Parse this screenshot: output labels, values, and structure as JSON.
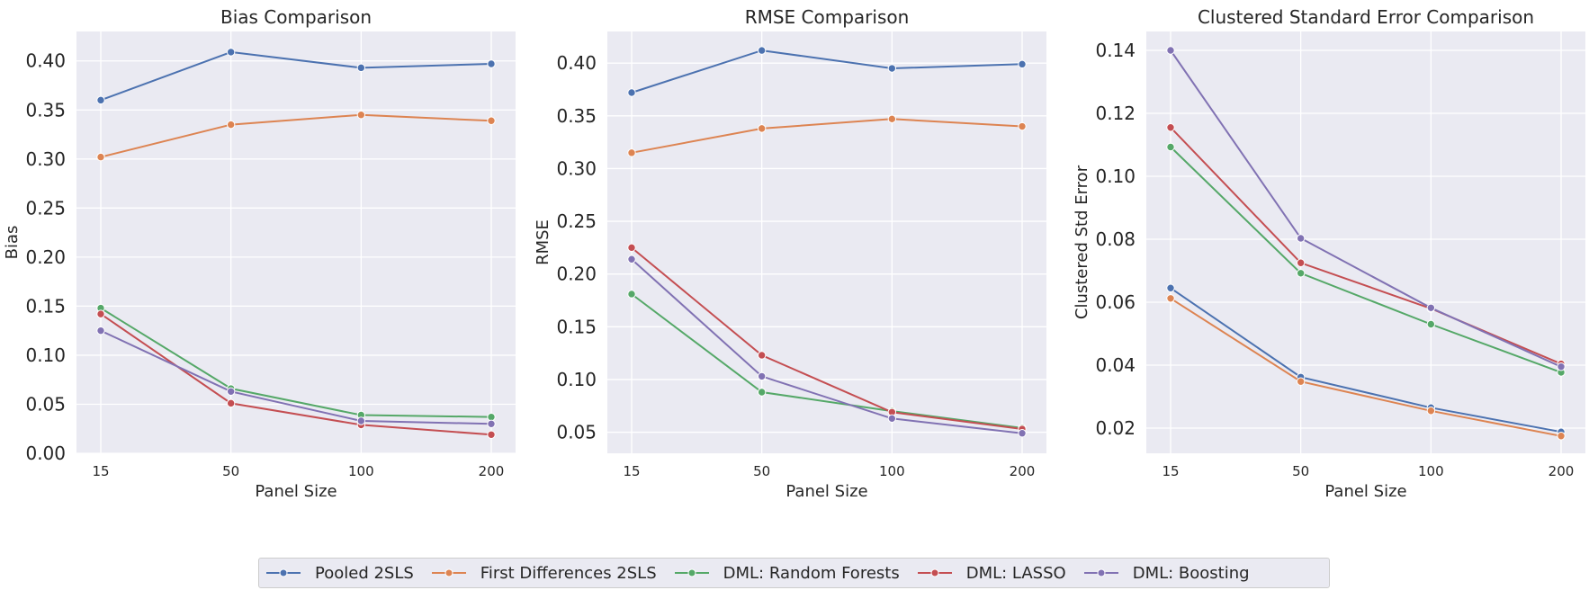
{
  "figure": {
    "title": "",
    "x_categories": [
      "15",
      "50",
      "100",
      "200"
    ]
  },
  "legend": {
    "items": [
      {
        "label": "Pooled 2SLS",
        "color": "#4c72b0"
      },
      {
        "label": "First Differences 2SLS",
        "color": "#dd8452"
      },
      {
        "label": "DML: Random Forests",
        "color": "#55a868"
      },
      {
        "label": "DML: LASSO",
        "color": "#c44e52"
      },
      {
        "label": "DML: Boosting",
        "color": "#8172b3"
      }
    ]
  },
  "chart_data": [
    {
      "type": "line",
      "title": "Bias Comparison",
      "xlabel": "Panel Size",
      "ylabel": "Bias",
      "categories": [
        "15",
        "50",
        "100",
        "200"
      ],
      "ylim": [
        0,
        0.43
      ],
      "yticks": [
        "0.00",
        "0.05",
        "0.10",
        "0.15",
        "0.20",
        "0.25",
        "0.30",
        "0.35",
        "0.40"
      ],
      "grid": true,
      "series": [
        {
          "name": "Pooled 2SLS",
          "color": "#4c72b0",
          "values": [
            0.36,
            0.409,
            0.393,
            0.397
          ]
        },
        {
          "name": "First Differences 2SLS",
          "color": "#dd8452",
          "values": [
            0.302,
            0.335,
            0.345,
            0.339
          ]
        },
        {
          "name": "DML: Random Forests",
          "color": "#55a868",
          "values": [
            0.148,
            0.066,
            0.039,
            0.037
          ]
        },
        {
          "name": "DML: LASSO",
          "color": "#c44e52",
          "values": [
            0.142,
            0.051,
            0.029,
            0.019
          ]
        },
        {
          "name": "DML: Boosting",
          "color": "#8172b3",
          "values": [
            0.125,
            0.063,
            0.033,
            0.03
          ]
        }
      ]
    },
    {
      "type": "line",
      "title": "RMSE Comparison",
      "xlabel": "Panel Size",
      "ylabel": "RMSE",
      "categories": [
        "15",
        "50",
        "100",
        "200"
      ],
      "ylim": [
        0.03,
        0.43
      ],
      "yticks": [
        "0.05",
        "0.10",
        "0.15",
        "0.20",
        "0.25",
        "0.30",
        "0.35",
        "0.40"
      ],
      "grid": true,
      "series": [
        {
          "name": "Pooled 2SLS",
          "color": "#4c72b0",
          "values": [
            0.372,
            0.412,
            0.395,
            0.399
          ]
        },
        {
          "name": "First Differences 2SLS",
          "color": "#dd8452",
          "values": [
            0.315,
            0.338,
            0.347,
            0.34
          ]
        },
        {
          "name": "DML: Random Forests",
          "color": "#55a868",
          "values": [
            0.181,
            0.088,
            0.07,
            0.054
          ]
        },
        {
          "name": "DML: LASSO",
          "color": "#c44e52",
          "values": [
            0.225,
            0.123,
            0.069,
            0.053
          ]
        },
        {
          "name": "DML: Boosting",
          "color": "#8172b3",
          "values": [
            0.214,
            0.103,
            0.063,
            0.049
          ]
        }
      ]
    },
    {
      "type": "line",
      "title": "Clustered Standard Error Comparison",
      "xlabel": "Panel Size",
      "ylabel": "Clustered Std Error",
      "categories": [
        "15",
        "50",
        "100",
        "200"
      ],
      "ylim": [
        0.012,
        0.146
      ],
      "yticks": [
        "0.02",
        "0.04",
        "0.06",
        "0.08",
        "0.10",
        "0.12",
        "0.14"
      ],
      "grid": true,
      "series": [
        {
          "name": "Pooled 2SLS",
          "color": "#4c72b0",
          "values": [
            0.0645,
            0.0362,
            0.0265,
            0.0188
          ]
        },
        {
          "name": "First Differences 2SLS",
          "color": "#dd8452",
          "values": [
            0.0612,
            0.0348,
            0.0255,
            0.0175
          ]
        },
        {
          "name": "DML: Random Forests",
          "color": "#55a868",
          "values": [
            0.1093,
            0.0692,
            0.053,
            0.0377
          ]
        },
        {
          "name": "DML: LASSO",
          "color": "#c44e52",
          "values": [
            0.1155,
            0.0725,
            0.058,
            0.0404
          ]
        },
        {
          "name": "DML: Boosting",
          "color": "#8172b3",
          "values": [
            0.14,
            0.0803,
            0.0582,
            0.0395
          ]
        }
      ]
    }
  ]
}
